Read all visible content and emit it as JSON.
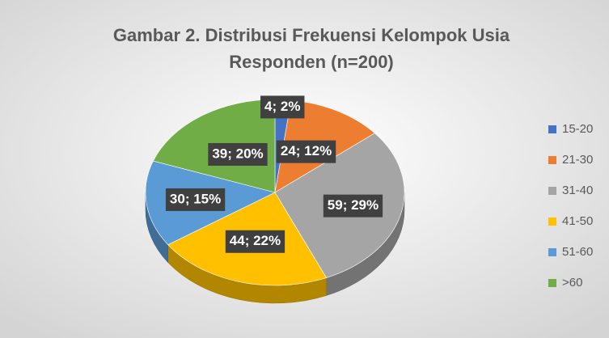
{
  "chart_data": {
    "type": "pie",
    "title": [
      "Gambar 2. Distribusi Frekuensi Kelompok Usia",
      "Responden (n=200)"
    ],
    "categories": [
      "15-20",
      "21-30",
      "31-40",
      "41-50",
      "51-60",
      ">60"
    ],
    "values": [
      4,
      24,
      59,
      44,
      30,
      39
    ],
    "value_labels": [
      "4; 2%",
      "24; 12%",
      "59; 29%",
      "44; 22%",
      "30; 15%",
      "39; 20%"
    ],
    "colors": [
      "#4472c4",
      "#ed7d31",
      "#a5a5a5",
      "#ffc000",
      "#5b9bd5",
      "#70ad47"
    ],
    "legend": "right"
  }
}
